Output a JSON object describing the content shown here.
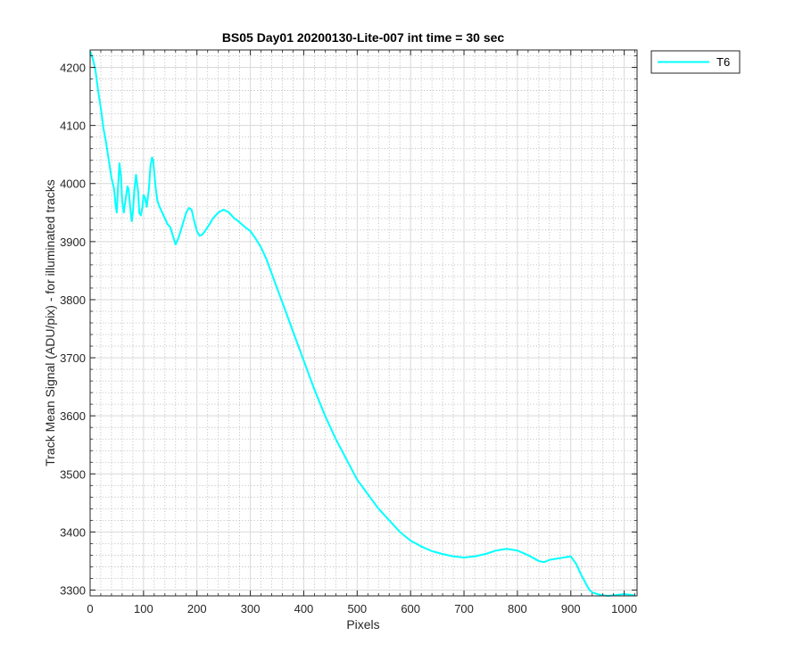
{
  "chart_data": {
    "type": "line",
    "title": "BS05 Day01 20200130-Lite-007 int time = 30 sec",
    "xlabel": "Pixels",
    "ylabel": "Track Mean Signal (ADU/pix) - for illuminated tracks",
    "xlim": [
      0,
      1024
    ],
    "ylim": [
      3290,
      4230
    ],
    "xticks": [
      0,
      100,
      200,
      300,
      400,
      500,
      600,
      700,
      800,
      900,
      1000
    ],
    "yticks": [
      3300,
      3400,
      3500,
      3600,
      3700,
      3800,
      3900,
      4000,
      4100,
      4200
    ],
    "grid": "major and minor (dotted)",
    "legend_position": "outside top-right",
    "series": [
      {
        "name": "T6",
        "color": "#00ffff",
        "x": [
          0,
          5,
          10,
          15,
          20,
          25,
          30,
          35,
          40,
          45,
          48,
          50,
          52,
          55,
          58,
          60,
          63,
          66,
          70,
          72,
          75,
          78,
          80,
          83,
          86,
          90,
          92,
          95,
          98,
          100,
          103,
          106,
          110,
          113,
          116,
          118,
          120,
          123,
          126,
          130,
          135,
          140,
          145,
          150,
          155,
          160,
          165,
          170,
          175,
          180,
          185,
          190,
          195,
          200,
          205,
          210,
          215,
          220,
          225,
          230,
          240,
          250,
          260,
          265,
          270,
          275,
          280,
          290,
          300,
          310,
          320,
          330,
          340,
          350,
          360,
          370,
          380,
          390,
          400,
          420,
          440,
          460,
          480,
          500,
          520,
          540,
          560,
          580,
          600,
          620,
          640,
          660,
          680,
          700,
          720,
          740,
          760,
          780,
          800,
          820,
          840,
          850,
          860,
          880,
          900,
          910,
          920,
          930,
          935,
          940,
          950,
          960,
          970,
          980,
          990,
          1000,
          1010,
          1020
        ],
        "values": [
          4228,
          4215,
          4195,
          4160,
          4130,
          4095,
          4070,
          4040,
          4010,
          3990,
          3960,
          3950,
          3990,
          4035,
          4010,
          3970,
          3950,
          3970,
          3995,
          3990,
          3960,
          3935,
          3950,
          3990,
          4015,
          3985,
          3950,
          3945,
          3960,
          3980,
          3975,
          3960,
          3990,
          4030,
          4045,
          4040,
          4020,
          3990,
          3970,
          3960,
          3950,
          3940,
          3930,
          3925,
          3910,
          3895,
          3905,
          3920,
          3935,
          3950,
          3958,
          3955,
          3935,
          3918,
          3910,
          3912,
          3918,
          3925,
          3932,
          3940,
          3950,
          3955,
          3950,
          3945,
          3940,
          3937,
          3933,
          3925,
          3918,
          3905,
          3890,
          3870,
          3845,
          3820,
          3795,
          3770,
          3745,
          3720,
          3695,
          3645,
          3600,
          3560,
          3525,
          3490,
          3465,
          3440,
          3420,
          3400,
          3385,
          3375,
          3367,
          3362,
          3358,
          3356,
          3358,
          3362,
          3368,
          3371,
          3368,
          3360,
          3350,
          3348,
          3352,
          3355,
          3358,
          3345,
          3325,
          3308,
          3300,
          3296,
          3293,
          3291,
          3290,
          3291,
          3292,
          3293,
          3292,
          3291
        ]
      }
    ]
  }
}
